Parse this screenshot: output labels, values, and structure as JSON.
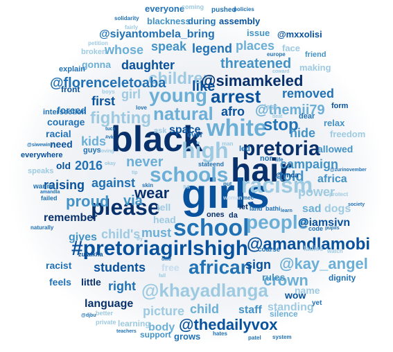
{
  "colors": {
    "darkest": "#08306b",
    "dark": "#08519c",
    "mid": "#2171b5",
    "mid2": "#4292c6",
    "light": "#6baed6",
    "lighter": "#9ecae1",
    "pale": "#c6dbef",
    "background": "#eef1f5"
  },
  "words": [
    {
      "text": "girls",
      "weight": 100
    },
    {
      "text": "black",
      "weight": 98
    },
    {
      "text": "hair",
      "weight": 96
    },
    {
      "text": "school",
      "weight": 80
    },
    {
      "text": "white",
      "weight": 78
    },
    {
      "text": "#pretoriagirlshigh",
      "weight": 76
    },
    {
      "text": "please",
      "weight": 74
    },
    {
      "text": "high",
      "weight": 70
    },
    {
      "text": "racism",
      "weight": 68
    },
    {
      "text": "schools",
      "weight": 66
    },
    {
      "text": "people",
      "weight": 62
    },
    {
      "text": "@amandlamobi",
      "weight": 60
    },
    {
      "text": "african",
      "weight": 58
    },
    {
      "text": "pretoria",
      "weight": 56
    },
    {
      "text": "young",
      "weight": 54
    },
    {
      "text": "children",
      "weight": 52
    },
    {
      "text": "@simamkeled",
      "weight": 50
    },
    {
      "text": "@khayadlanga",
      "weight": 50
    },
    {
      "text": "natural",
      "weight": 48
    },
    {
      "text": "fighting",
      "weight": 46
    },
    {
      "text": "arrest",
      "weight": 45
    },
    {
      "text": "stop",
      "weight": 44
    },
    {
      "text": "@kay_angel",
      "weight": 43
    },
    {
      "text": "@thedailyvox",
      "weight": 42
    },
    {
      "text": "threatened",
      "weight": 40
    },
    {
      "text": "proud",
      "weight": 40
    },
    {
      "text": "wear",
      "weight": 39
    },
    {
      "text": "crown",
      "weight": 38
    },
    {
      "text": "never",
      "weight": 37
    },
    {
      "text": "told",
      "weight": 36
    },
    {
      "text": "via",
      "weight": 36
    },
    {
      "text": "campaign",
      "weight": 35
    },
    {
      "text": "@florenceletoaba",
      "weight": 34
    },
    {
      "text": "@themii79",
      "weight": 34
    },
    {
      "text": "@siyantombela_bring",
      "weight": 32
    },
    {
      "text": "daughter",
      "weight": 32
    },
    {
      "text": "speak",
      "weight": 31
    },
    {
      "text": "legend",
      "weight": 30
    },
    {
      "text": "places",
      "weight": 30
    },
    {
      "text": "whose",
      "weight": 30
    },
    {
      "text": "like",
      "weight": 30
    },
    {
      "text": "first",
      "weight": 30
    },
    {
      "text": "kids",
      "weight": 30
    },
    {
      "text": "girl",
      "weight": 30
    },
    {
      "text": "removed",
      "weight": 29
    },
    {
      "text": "afro",
      "weight": 28
    },
    {
      "text": "hide",
      "weight": 28
    },
    {
      "text": "against",
      "weight": 28
    },
    {
      "text": "2016",
      "weight": 28
    },
    {
      "text": "raising",
      "weight": 28
    },
    {
      "text": "power",
      "weight": 28
    },
    {
      "text": "africa",
      "weight": 27
    },
    {
      "text": "sign",
      "weight": 28
    },
    {
      "text": "must",
      "weight": 27
    },
    {
      "text": "child's",
      "weight": 27
    },
    {
      "text": "students",
      "weight": 27
    },
    {
      "text": "remember",
      "weight": 26
    },
    {
      "text": "right",
      "weight": 27
    },
    {
      "text": "picture",
      "weight": 27
    },
    {
      "text": "child",
      "weight": 27
    },
    {
      "text": "language",
      "weight": 25
    },
    {
      "text": "body",
      "weight": 24
    },
    {
      "text": "gives",
      "weight": 24
    },
    {
      "text": "@iamsivn",
      "weight": 24
    },
    {
      "text": "sad",
      "weight": 23
    },
    {
      "text": "dogs",
      "weight": 23
    },
    {
      "text": "space",
      "weight": 22
    },
    {
      "text": "allowed",
      "weight": 22
    },
    {
      "text": "staff",
      "weight": 22
    },
    {
      "text": "standing",
      "weight": 22
    },
    {
      "text": "rules",
      "weight": 22
    },
    {
      "text": "wow",
      "weight": 22
    },
    {
      "text": "name",
      "weight": 22
    },
    {
      "text": "gonna",
      "weight": 21
    },
    {
      "text": "courage",
      "weight": 20
    },
    {
      "text": "forced",
      "weight": 20
    },
    {
      "text": "racial",
      "weight": 20
    },
    {
      "text": "need",
      "weight": 20
    },
    {
      "text": "old",
      "weight": 20
    },
    {
      "text": "racist",
      "weight": 20
    },
    {
      "text": "feels",
      "weight": 20
    },
    {
      "text": "little",
      "weight": 19
    },
    {
      "text": "free",
      "weight": 20
    },
    {
      "text": "head",
      "weight": 20
    },
    {
      "text": "tell",
      "weight": 20
    },
    {
      "text": "assembly",
      "weight": 20
    },
    {
      "text": "everyone",
      "weight": 19
    },
    {
      "text": "blackness",
      "weight": 19
    },
    {
      "text": "during",
      "weight": 18
    },
    {
      "text": "issue",
      "weight": 18
    },
    {
      "text": "@mxxolisi",
      "weight": 18
    },
    {
      "text": "face",
      "weight": 18
    },
    {
      "text": "making",
      "weight": 18
    },
    {
      "text": "relax",
      "weight": 18
    },
    {
      "text": "freedom",
      "weight": 18
    },
    {
      "text": "grows",
      "weight": 18
    },
    {
      "text": "support",
      "weight": 17
    },
    {
      "text": "learning",
      "weight": 17
    },
    {
      "text": "silence",
      "weight": 17
    },
    {
      "text": "dignity",
      "weight": 16
    },
    {
      "text": "front",
      "weight": 16
    },
    {
      "text": "intersection",
      "weight": 15
    },
    {
      "text": "everywhere",
      "weight": 15
    },
    {
      "text": "speaks",
      "weight": 15
    },
    {
      "text": "wanna",
      "weight": 15
    },
    {
      "text": "explain",
      "weight": 15
    },
    {
      "text": "broken",
      "weight": 15
    },
    {
      "text": "friend",
      "weight": 15
    },
    {
      "text": "form",
      "weight": 14
    },
    {
      "text": "dear",
      "weight": 14
    },
    {
      "text": "last",
      "weight": 14
    },
    {
      "text": "led",
      "weight": 14
    },
    {
      "text": "nor",
      "weight": 14
    },
    {
      "text": "ever",
      "weight": 14
    },
    {
      "text": "guys",
      "weight": 14
    },
    {
      "text": "ask",
      "weight": 14
    },
    {
      "text": "ones",
      "weight": 14
    },
    {
      "text": "da",
      "weight": 14
    },
    {
      "text": "let",
      "weight": 13
    },
    {
      "text": "land",
      "weight": 12
    },
    {
      "text": "bathi",
      "weight": 12
    },
    {
      "text": "coarse",
      "weight": 13
    },
    {
      "text": "ladies",
      "weight": 13
    },
    {
      "text": "yet",
      "weight": 13
    },
    {
      "text": "@enca",
      "weight": 12
    },
    {
      "text": "pushed",
      "weight": 13
    },
    {
      "text": "coming",
      "weight": 12
    },
    {
      "text": "policies",
      "weight": 11
    },
    {
      "text": "solidarity",
      "weight": 11
    },
    {
      "text": "fairly",
      "weight": 11
    },
    {
      "text": "petition",
      "weight": 11
    },
    {
      "text": "europe",
      "weight": 10
    },
    {
      "text": "coward",
      "weight": 10
    },
    {
      "text": "boys",
      "weight": 11
    },
    {
      "text": "love",
      "weight": 11
    },
    {
      "text": "beat",
      "weight": 10
    },
    {
      "text": "man",
      "weight": 11
    },
    {
      "text": "put",
      "weight": 11
    },
    {
      "text": "woman",
      "weight": 11
    },
    {
      "text": "mec",
      "weight": 11
    },
    {
      "text": "state",
      "weight": 12
    },
    {
      "text": "end",
      "weight": 12
    },
    {
      "text": "life",
      "weight": 11
    },
    {
      "text": "sa",
      "weight": 12
    },
    {
      "text": "skin",
      "weight": 11
    },
    {
      "text": "tip",
      "weight": 10
    },
    {
      "text": "okay",
      "weight": 10
    },
    {
      "text": "tuck",
      "weight": 10
    },
    {
      "text": "#vk",
      "weight": 10
    },
    {
      "text": "loving",
      "weight": 10
    },
    {
      "text": "@siwewine",
      "weight": 10
    },
    {
      "text": "amandla",
      "weight": 10
    },
    {
      "text": "failed",
      "weight": 11
    },
    {
      "text": "naturally",
      "weight": 10
    },
    {
      "text": "zulaikha",
      "weight": 11
    },
    {
      "text": "pupils",
      "weight": 10
    },
    {
      "text": "code",
      "weight": 11
    },
    {
      "text": "watch",
      "weight": 11
    },
    {
      "text": "society",
      "weight": 10
    },
    {
      "text": "protect",
      "weight": 11
    },
    {
      "text": "@zurinovember",
      "weight": 10
    },
    {
      "text": "learn",
      "weight": 10
    },
    {
      "text": "ollie",
      "weight": 10
    },
    {
      "text": "try",
      "weight": 10
    },
    {
      "text": "fall",
      "weight": 10
    },
    {
      "text": "better",
      "weight": 11
    },
    {
      "text": "private",
      "weight": 11
    },
    {
      "text": "@djbu",
      "weight": 10
    },
    {
      "text": "teachers",
      "weight": 10
    },
    {
      "text": "hates",
      "weight": 10
    },
    {
      "text": "patel",
      "weight": 10
    },
    {
      "text": "system",
      "weight": 10
    }
  ]
}
